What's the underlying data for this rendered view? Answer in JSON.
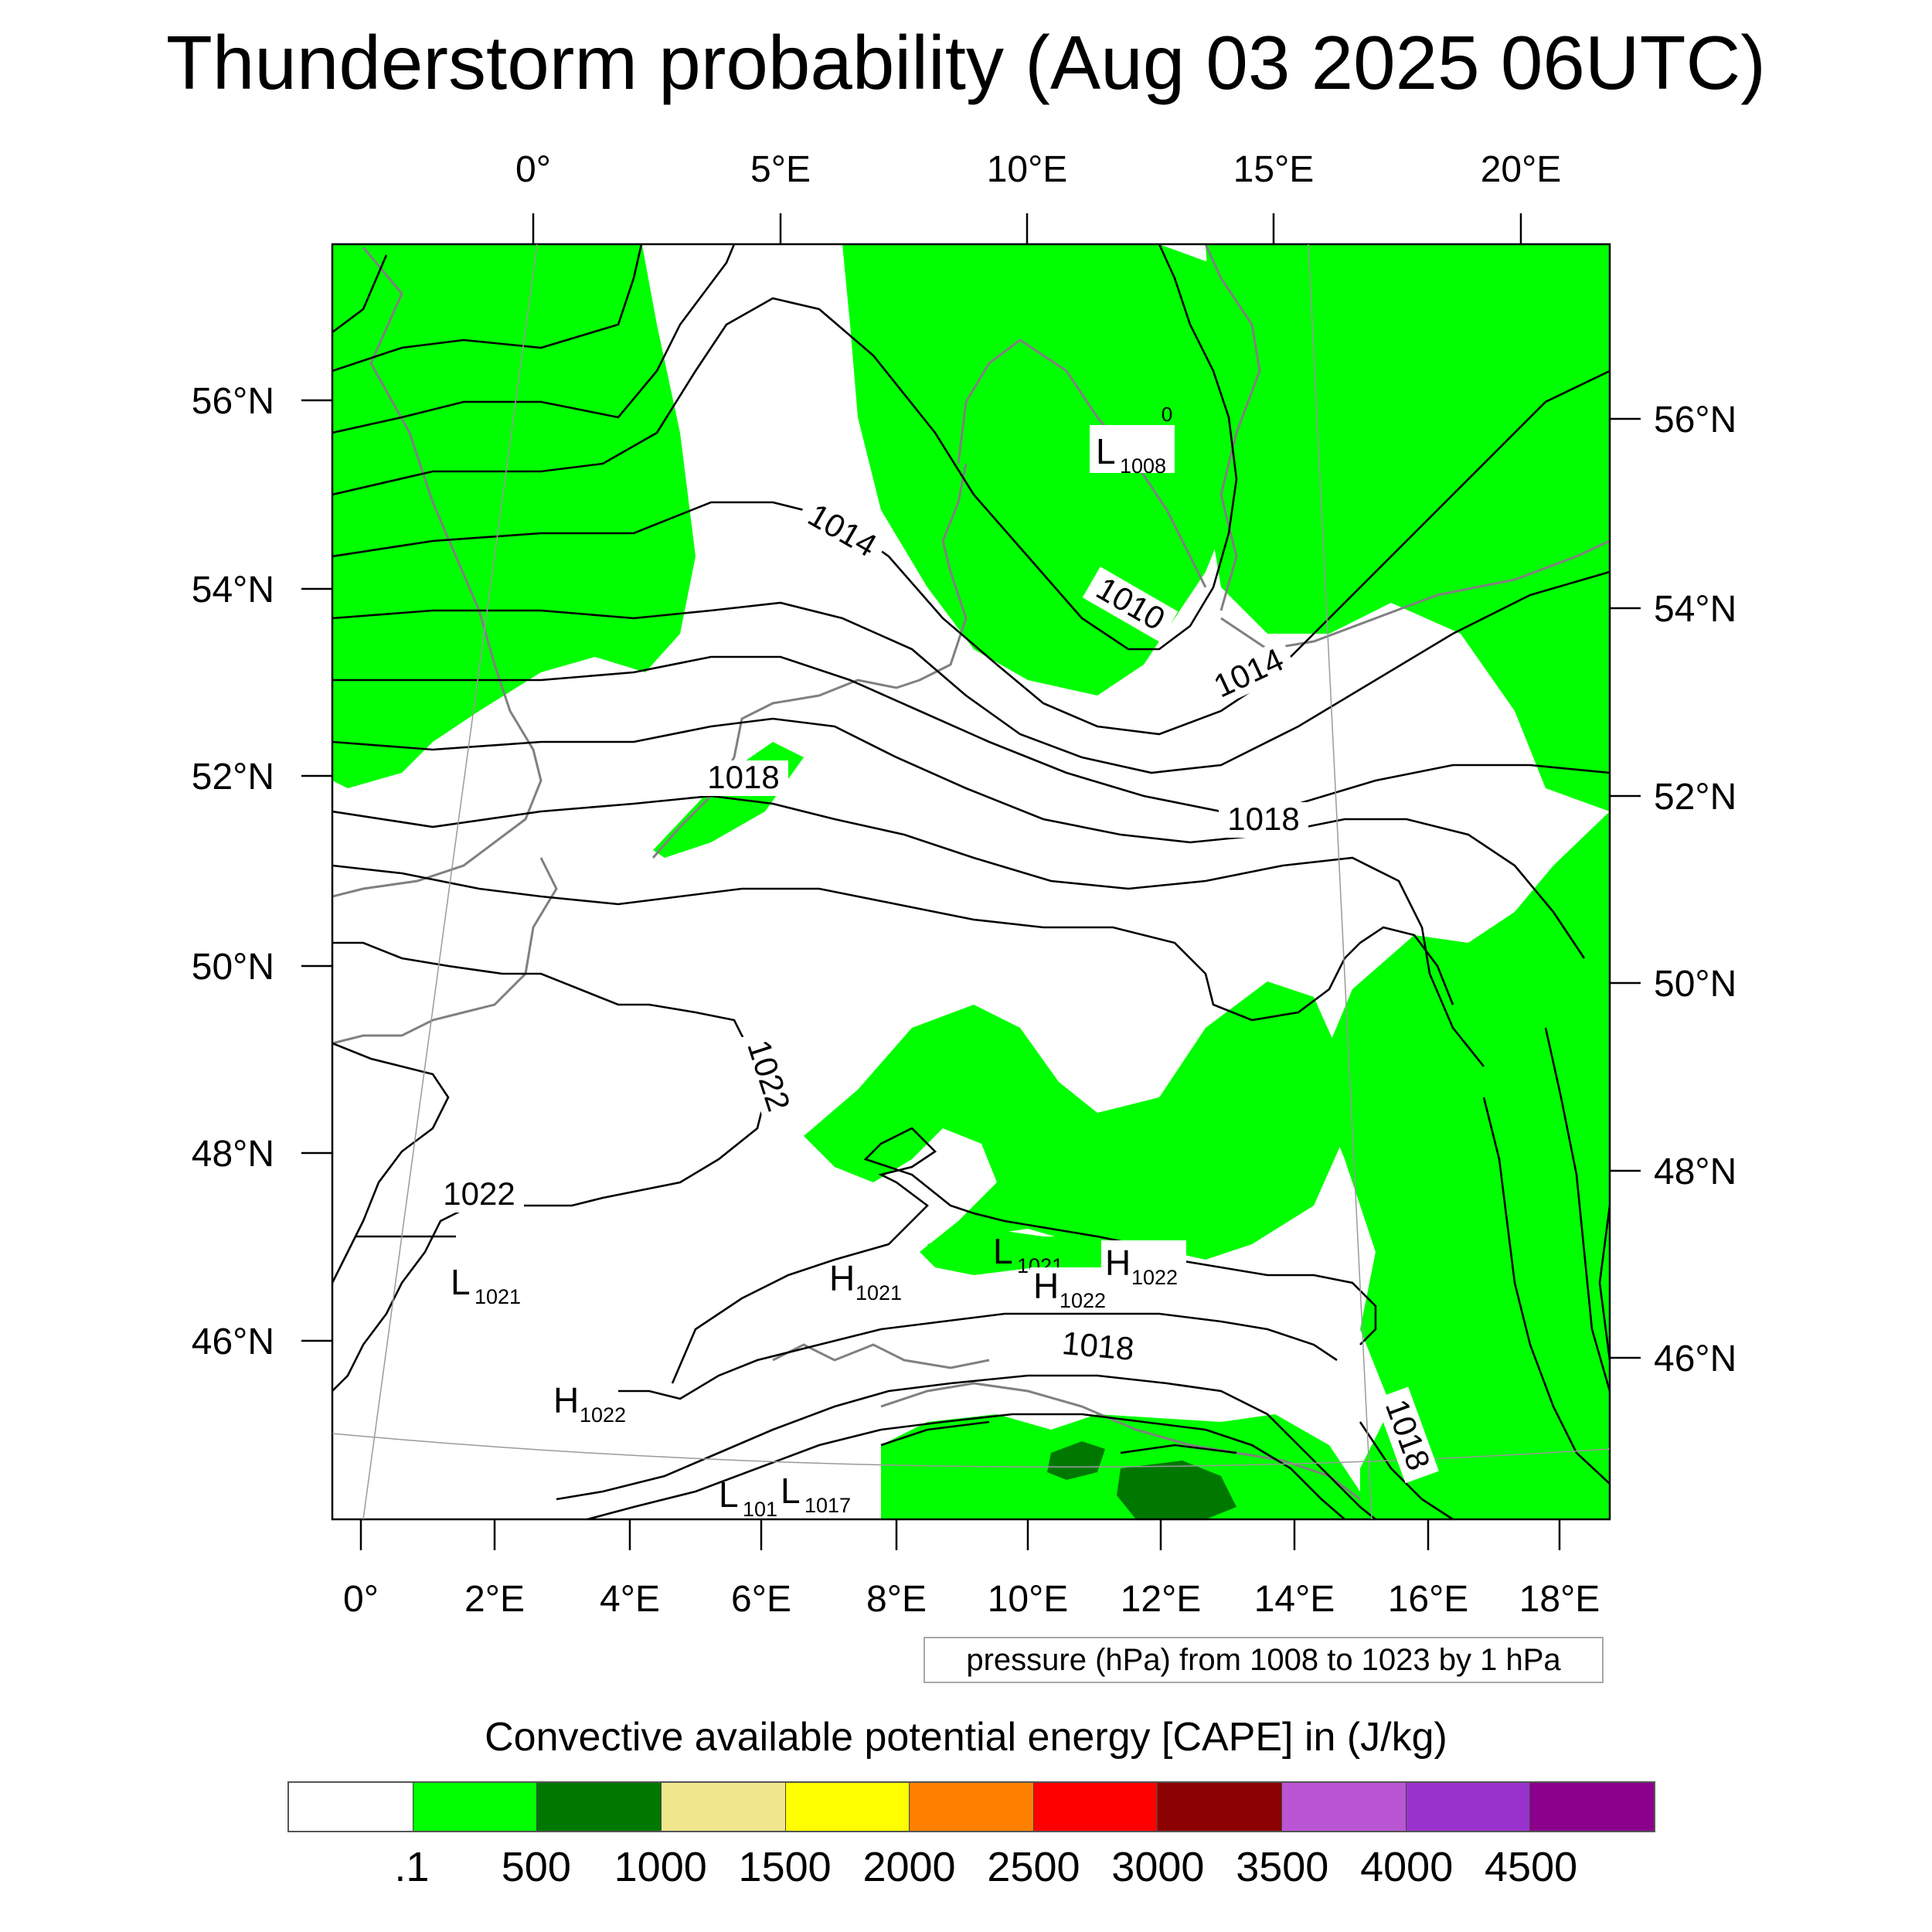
{
  "title": "Thunderstorm probability (Aug 03 2025 06UTC)",
  "map": {
    "projection": "Lambert conformal",
    "field_shaded": "Convective available potential energy [CAPE]",
    "field_contoured": "mean sea level pressure",
    "top_lon_labels": [
      "0°",
      "5°E",
      "10°E",
      "15°E",
      "20°E"
    ],
    "bottom_lon_labels": [
      "0°",
      "2°E",
      "4°E",
      "6°E",
      "8°E",
      "10°E",
      "12°E",
      "14°E",
      "16°E",
      "18°E"
    ],
    "left_lat_labels": [
      "56°N",
      "54°N",
      "52°N",
      "50°N",
      "48°N",
      "46°N"
    ],
    "right_lat_labels": [
      "56°N",
      "54°N",
      "52°N",
      "50°N",
      "48°N",
      "46°N"
    ],
    "contour_labels": [
      "1014",
      "1010",
      "1014",
      "1018",
      "1018",
      "1022",
      "1022",
      "1018",
      "1018",
      "0"
    ],
    "pressure_centers": [
      {
        "letter": "L",
        "value": "1008"
      },
      {
        "letter": "L",
        "value": "1021"
      },
      {
        "letter": "H",
        "value": "1021"
      },
      {
        "letter": "L",
        "value": "1021"
      },
      {
        "letter": "H",
        "value": "1022"
      },
      {
        "letter": "H",
        "value": "1022"
      },
      {
        "letter": "H",
        "value": "1022"
      },
      {
        "letter": "L",
        "value": "101"
      },
      {
        "letter": "L",
        "value": "1017"
      }
    ]
  },
  "contour_info": "pressure (hPa) from 1008 to 1023 by 1 hPa",
  "colorbar": {
    "title": "Convective available potential energy [CAPE] in (J/kg)",
    "colors": [
      "#ffffff",
      "#00ff00",
      "#007800",
      "#f0e68c",
      "#ffff00",
      "#ff8000",
      "#ff0000",
      "#8b0000",
      "#ba55d3",
      "#9932cc",
      "#8b008b"
    ],
    "labels": [
      ".1",
      "500",
      "1000",
      "1500",
      "2000",
      "2500",
      "3000",
      "3500",
      "4000",
      "4500"
    ]
  },
  "colors": {
    "cape_light": "#00ff00",
    "cape_dark": "#007800",
    "coastline": "#808080",
    "contour": "#000000"
  }
}
